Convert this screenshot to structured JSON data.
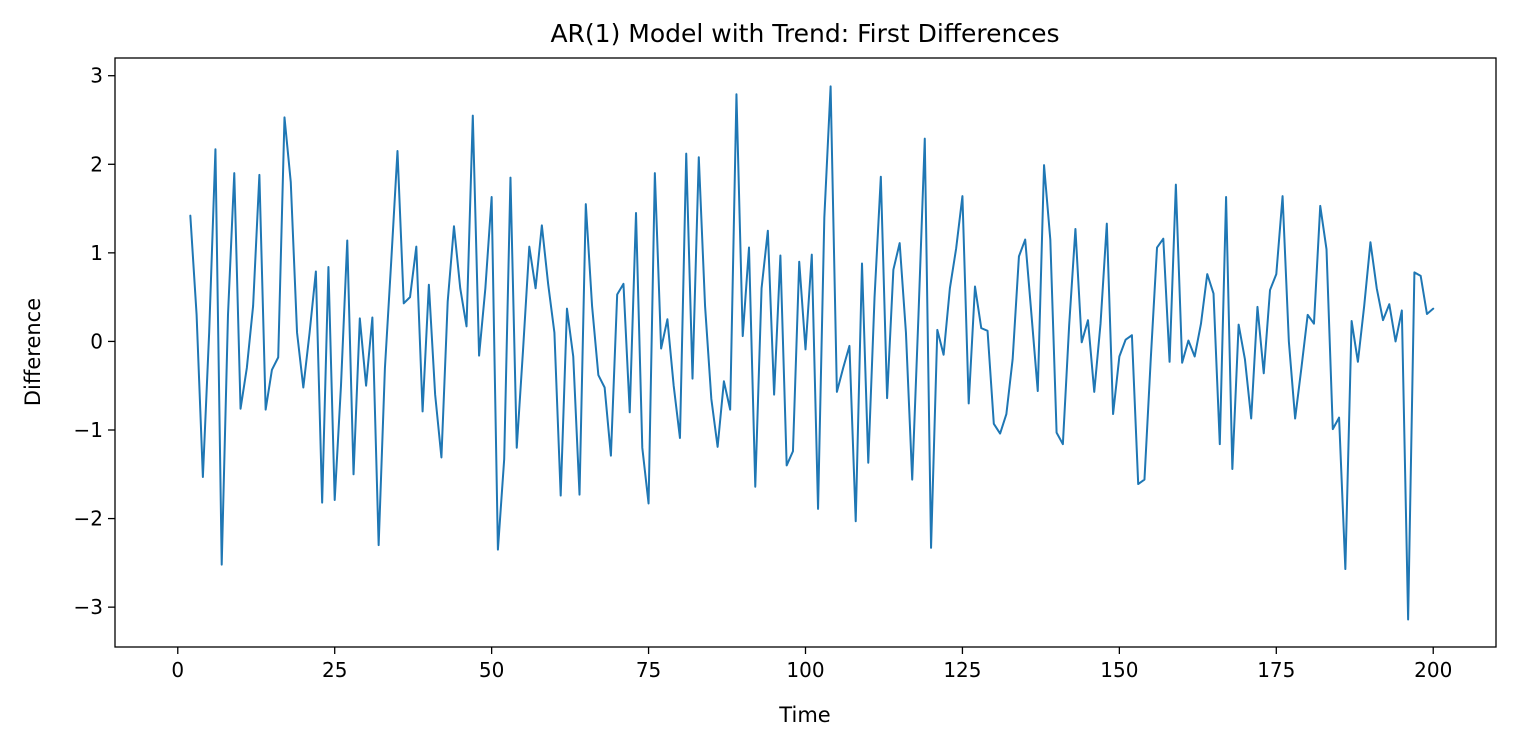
{
  "chart_data": {
    "type": "line",
    "title": "AR(1) Model with Trend: First Differences",
    "xlabel": "Time",
    "ylabel": "Difference",
    "xlim": [
      -10,
      210
    ],
    "ylim": [
      -3.45,
      3.2
    ],
    "xticks": [
      0,
      25,
      50,
      75,
      100,
      125,
      150,
      175,
      200
    ],
    "xtick_labels": [
      "0",
      "25",
      "50",
      "75",
      "100",
      "125",
      "150",
      "175",
      "200"
    ],
    "yticks": [
      -3,
      -2,
      -1,
      0,
      1,
      2,
      3
    ],
    "ytick_labels": [
      "−3",
      "−2",
      "−1",
      "0",
      "1",
      "2",
      "3"
    ],
    "grid": false,
    "line_color": "#1f77b4",
    "series": [
      {
        "x": [
          2,
          3,
          4,
          5,
          6,
          7,
          8,
          9,
          10,
          11,
          12,
          13,
          14,
          15,
          16,
          17,
          18,
          19,
          20,
          21,
          22,
          23,
          24,
          25,
          26,
          27,
          28,
          29,
          30,
          31,
          32,
          33,
          34,
          35,
          36,
          37,
          38,
          39,
          40,
          41,
          42,
          43,
          44,
          45,
          46,
          47,
          48,
          49,
          50,
          51,
          52,
          53,
          54,
          55,
          56,
          57,
          58,
          59,
          60,
          61,
          62,
          63,
          64,
          65,
          66,
          67,
          68,
          69,
          70,
          71,
          72,
          73,
          74,
          75,
          76,
          77,
          78,
          79,
          80,
          81,
          82,
          83,
          84,
          85,
          86,
          87,
          88,
          89,
          90,
          91,
          92,
          93,
          94,
          95,
          96,
          97,
          98,
          99,
          100,
          101,
          102,
          103,
          104,
          105,
          106,
          107,
          108,
          109,
          110,
          111,
          112,
          113,
          114,
          115,
          116,
          117,
          118,
          119,
          120,
          121,
          122,
          123,
          124,
          125,
          126,
          127,
          128,
          129,
          130,
          131,
          132,
          133,
          134,
          135,
          136,
          137,
          138,
          139,
          140,
          141,
          142,
          143,
          144,
          145,
          146,
          147,
          148,
          149,
          150,
          151,
          152,
          153,
          154,
          155,
          156,
          157,
          158,
          159,
          160,
          161,
          162,
          163,
          164,
          165,
          166,
          167,
          168,
          169,
          170,
          171,
          172,
          173,
          174,
          175,
          176,
          177,
          178,
          179,
          180,
          181,
          182,
          183,
          184,
          185,
          186,
          187,
          188,
          189,
          190,
          191,
          192,
          193,
          194,
          195,
          196,
          197,
          198,
          199,
          200
        ],
        "values": [
          1.42,
          0.3,
          -1.53,
          0.1,
          2.17,
          -2.52,
          0.3,
          1.9,
          -0.76,
          -0.3,
          0.4,
          1.88,
          -0.77,
          -0.32,
          -0.18,
          2.53,
          1.8,
          0.1,
          -0.52,
          0.1,
          0.79,
          -1.82,
          0.84,
          -1.79,
          -0.5,
          1.14,
          -1.5,
          0.26,
          -0.5,
          0.27,
          -2.3,
          -0.3,
          0.9,
          2.15,
          0.43,
          0.5,
          1.07,
          -0.79,
          0.64,
          -0.6,
          -1.31,
          0.45,
          1.3,
          0.6,
          0.17,
          2.55,
          -0.16,
          0.6,
          1.63,
          -2.35,
          -1.33,
          1.85,
          -1.2,
          -0.1,
          1.07,
          0.6,
          1.31,
          0.65,
          0.1,
          -1.74,
          0.37,
          -0.17,
          -1.73,
          1.55,
          0.4,
          -0.38,
          -0.52,
          -1.29,
          0.53,
          0.65,
          -0.8,
          1.45,
          -1.2,
          -1.83,
          1.9,
          -0.08,
          0.25,
          -0.5,
          -1.09,
          2.12,
          -0.42,
          2.08,
          0.4,
          -0.65,
          -1.19,
          -0.45,
          -0.77,
          2.79,
          0.06,
          1.06,
          -1.64,
          0.6,
          1.25,
          -0.6,
          0.97,
          -1.4,
          -1.24,
          0.9,
          -0.09,
          0.98,
          -1.89,
          1.4,
          2.88,
          -0.57,
          -0.3,
          -0.05,
          -2.03,
          0.88,
          -1.37,
          0.5,
          1.86,
          -0.64,
          0.81,
          1.11,
          0.1,
          -1.56,
          0.3,
          2.29,
          -2.33,
          0.13,
          -0.15,
          0.6,
          1.05,
          1.64,
          -0.7,
          0.62,
          0.15,
          0.12,
          -0.93,
          -1.04,
          -0.82,
          -0.2,
          0.96,
          1.15,
          0.3,
          -0.56,
          1.99,
          1.15,
          -1.03,
          -1.16,
          0.18,
          1.27,
          -0.01,
          0.24,
          -0.57,
          0.2,
          1.33,
          -0.82,
          -0.17,
          0.02,
          0.07,
          -1.61,
          -1.56,
          -0.2,
          1.06,
          1.16,
          -0.23,
          1.77,
          -0.24,
          0.01,
          -0.17,
          0.2,
          0.76,
          0.54,
          -1.16,
          1.63,
          -1.44,
          0.19,
          -0.2,
          -0.87,
          0.39,
          -0.36,
          0.58,
          0.76,
          1.64,
          0.0,
          -0.87,
          -0.3,
          0.3,
          0.2,
          1.53,
          1.04,
          -0.99,
          -0.86,
          -2.57,
          0.23,
          -0.23,
          0.4,
          1.12,
          0.6,
          0.24,
          0.42,
          0.0,
          0.35,
          -3.14,
          0.78,
          0.74,
          0.31,
          0.37
        ]
      }
    ]
  }
}
